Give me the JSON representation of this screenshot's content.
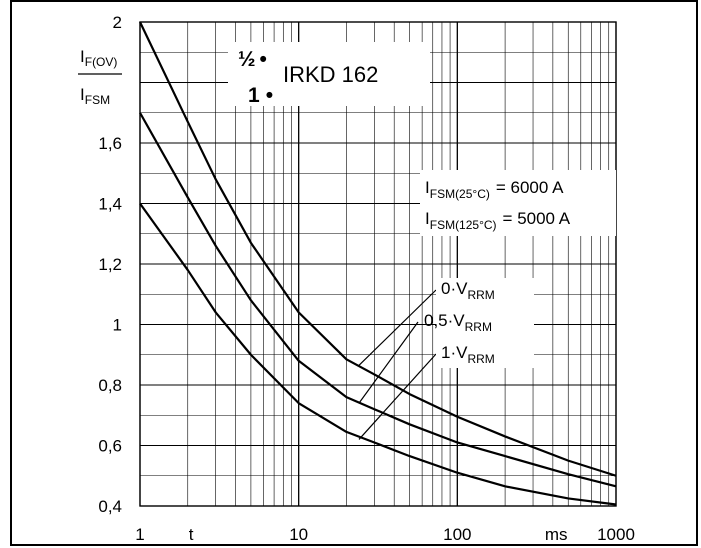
{
  "chart_data": {
    "type": "line",
    "x_scale": "log",
    "xlim": [
      1,
      1000
    ],
    "ylim": [
      0.4,
      2.0
    ],
    "grid": true,
    "x_ticks": [
      {
        "value": 1,
        "label": "1"
      },
      {
        "value": 10,
        "label": "10"
      },
      {
        "value": 100,
        "label": "100"
      },
      {
        "value": 1000,
        "label": "1000"
      }
    ],
    "x_extra_labels": {
      "t": "t",
      "ms": "ms"
    },
    "y_ticks": [
      {
        "value": 0.4,
        "label": "0,4"
      },
      {
        "value": 0.6,
        "label": "0,6"
      },
      {
        "value": 0.8,
        "label": "0,8"
      },
      {
        "value": 1.0,
        "label": "1"
      },
      {
        "value": 1.2,
        "label": "1,2"
      },
      {
        "value": 1.4,
        "label": "1,4"
      },
      {
        "value": 1.6,
        "label": "1,6"
      },
      {
        "value": 2.0,
        "label": "2"
      }
    ],
    "ylabel": {
      "num_main": "I",
      "num_sub": "F(OV)",
      "den_main": "I",
      "den_sub": "FSM"
    },
    "device": {
      "half_label": "½",
      "one_label": "1",
      "dot": "•",
      "name": "IRKD 162"
    },
    "ratings": [
      {
        "main": "I",
        "sub": "FSM(25°C)",
        "value": "= 6000 A"
      },
      {
        "main": "I",
        "sub": "FSM(125°C)",
        "value": "= 5000 A"
      }
    ],
    "series": [
      {
        "prefix": "0·V",
        "sub": "RRM",
        "x": [
          1,
          2,
          3,
          5,
          10,
          20,
          30,
          50,
          100,
          200,
          500,
          1000
        ],
        "y": [
          2.0,
          1.67,
          1.48,
          1.27,
          1.04,
          0.885,
          0.835,
          0.77,
          0.695,
          0.63,
          0.55,
          0.5
        ]
      },
      {
        "prefix": "0,5·V",
        "sub": "RRM",
        "x": [
          1,
          2,
          3,
          5,
          10,
          20,
          30,
          50,
          100,
          200,
          500,
          1000
        ],
        "y": [
          1.7,
          1.42,
          1.26,
          1.08,
          0.88,
          0.76,
          0.72,
          0.67,
          0.61,
          0.565,
          0.505,
          0.465
        ]
      },
      {
        "prefix": "1·V",
        "sub": "RRM",
        "x": [
          1,
          2,
          3,
          5,
          10,
          20,
          30,
          50,
          100,
          200,
          500,
          1000
        ],
        "y": [
          1.4,
          1.18,
          1.04,
          0.9,
          0.74,
          0.645,
          0.61,
          0.565,
          0.51,
          0.465,
          0.425,
          0.405
        ]
      }
    ],
    "leader_points": [
      {
        "x": 24,
        "y": 0.865
      },
      {
        "x": 24,
        "y": 0.74
      },
      {
        "x": 24,
        "y": 0.62
      }
    ]
  }
}
